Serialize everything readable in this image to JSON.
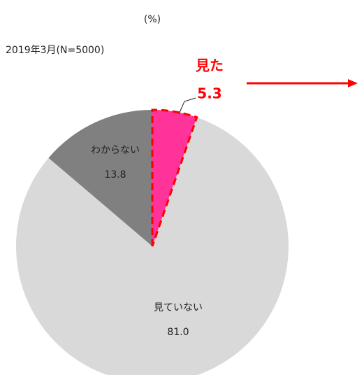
{
  "chart_data": {
    "type": "pie",
    "unit_label": "(%)",
    "subtitle": "2019年3月(N=5000)",
    "categories": [
      "見た",
      "見ていない",
      "わからない"
    ],
    "values": [
      5.3,
      81.0,
      13.8
    ],
    "value_labels": [
      "5.3",
      "81.0",
      "13.8"
    ],
    "colors": [
      "#ff3399",
      "#d9d9d9",
      "#808080"
    ],
    "highlight_color": "#ff0000"
  }
}
